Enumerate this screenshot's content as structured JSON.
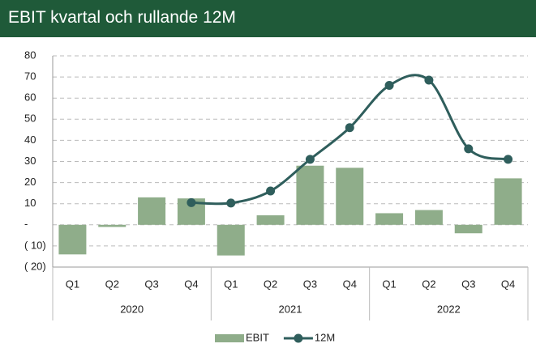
{
  "chart_data": {
    "type": "bar",
    "title": "EBIT kvartal och rullande 12M",
    "categories": [
      "Q1",
      "Q2",
      "Q3",
      "Q4",
      "Q1",
      "Q2",
      "Q3",
      "Q4",
      "Q1",
      "Q2",
      "Q3",
      "Q4"
    ],
    "groups": [
      "2020",
      "2021",
      "2022"
    ],
    "series": [
      {
        "name": "EBIT",
        "type": "bar",
        "color": "#8fad8a",
        "values": [
          -14,
          -1,
          13,
          12.5,
          -14.5,
          4.5,
          28,
          27,
          5.5,
          7,
          -4,
          22
        ]
      },
      {
        "name": "12M",
        "type": "line",
        "color": "#2f5e5c",
        "values": [
          null,
          null,
          null,
          10.5,
          10.3,
          16,
          31,
          46,
          66,
          68.5,
          36,
          31
        ]
      }
    ],
    "ylim": [
      -20,
      80
    ],
    "yticks": [
      {
        "value": -20,
        "label": "( 20)"
      },
      {
        "value": -10,
        "label": "( 10)"
      },
      {
        "value": 0,
        "label": "-"
      },
      10,
      20,
      30,
      40,
      50,
      60,
      70,
      80
    ],
    "grid": true,
    "legend": "bottom"
  }
}
